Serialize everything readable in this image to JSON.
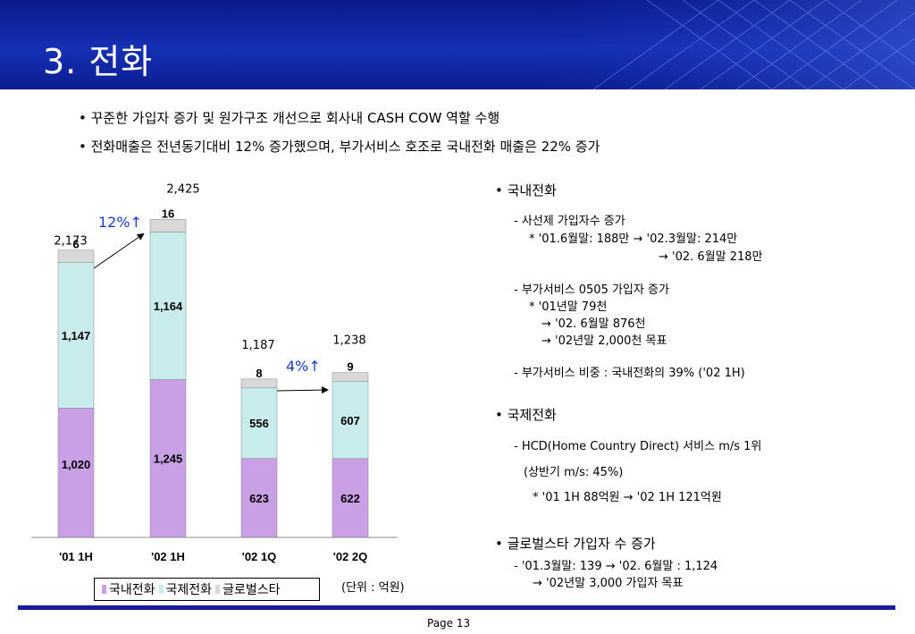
{
  "title": "3. 전화",
  "bullets": [
    "• 꾸준한 가입자 증가 및 원가구조 개선으로 회사내 CASH COW 역할 수행",
    "• 전화매출은 전년동기대비 12% 증가했으며, 부가서비스 호조로 국내전화 매출은 22% 증가"
  ],
  "right": {
    "domestic": {
      "heading": "• 국내전화",
      "lines": [
        "- 사선제 가입자수 증가",
        "* '01.6월말: 188만   → '02.3월말: 214만",
        "→ '02. 6월말 218만",
        "- 부가서비스 0505 가입자 증가",
        "*    '01년말         79천",
        "→ '02. 6월말  876천",
        "→ '02년말   2,000천 목표",
        "- 부가서비스 비중  : 국내전화의 39% ('02 1H)"
      ]
    },
    "international": {
      "heading": "• 국제전화",
      "lines": [
        "- HCD(Home Country Direct) 서비스 m/s 1위",
        "(상반기 m/s: 45%)",
        "* '01 1H 88억원 → '02 1H 121억원"
      ]
    },
    "global": {
      "heading": "• 글로벌스타 가입자 수 증가",
      "lines": [
        "- '01.3월말: 139 → '02. 6월말 : 1,124",
        "→ '02년말 3,000 가입자 목표"
      ]
    }
  },
  "chart_data": {
    "type": "bar",
    "stacked": true,
    "categories": [
      "'01 1H",
      "'02 1H",
      "'02 1Q",
      "'02 2Q"
    ],
    "series": [
      {
        "name": "국내전화",
        "values": [
          1020,
          1245,
          623,
          622
        ],
        "color": "#c9a0e6"
      },
      {
        "name": "국제전화",
        "values": [
          1147,
          1164,
          556,
          607
        ],
        "color": "#c8ecec"
      },
      {
        "name": "글로벌스타",
        "values": [
          6,
          16,
          8,
          9
        ],
        "color": "#d8d8d8"
      }
    ],
    "segment_labels": [
      [
        "1,020",
        "1,147",
        "6"
      ],
      [
        "1,245",
        "1,164",
        "16"
      ],
      [
        "623",
        "556",
        "8"
      ],
      [
        "622",
        "607",
        "9"
      ]
    ],
    "totals": [
      "2,173",
      "2,425",
      "1,187",
      "1,238"
    ],
    "growth_labels": [
      "12%↑",
      "4%↑"
    ],
    "unit": "(단위 : 억원)"
  },
  "legend": [
    "국내전화",
    "국제전화",
    "글로벌스타"
  ],
  "page_label": "Page 13",
  "colors": {
    "banner": "#1530b4",
    "accent_text": "#1a3cc8",
    "footer": "#1a1a9e"
  }
}
